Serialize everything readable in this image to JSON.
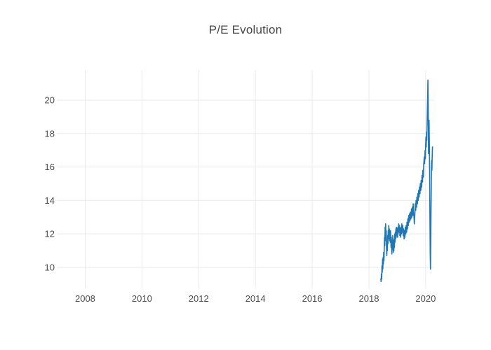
{
  "chart_data": {
    "type": "line",
    "title": "P/E Evolution",
    "xlabel": "",
    "ylabel": "",
    "grid": true,
    "legend": false,
    "xlim": [
      2007.0,
      2020.3
    ],
    "ylim": [
      8.7,
      21.8
    ],
    "x_ticks": [
      {
        "label": "2008",
        "value": 2008
      },
      {
        "label": "2010",
        "value": 2010
      },
      {
        "label": "2012",
        "value": 2012
      },
      {
        "label": "2014",
        "value": 2014
      },
      {
        "label": "2016",
        "value": 2016
      },
      {
        "label": "2018",
        "value": 2018
      },
      {
        "label": "2020",
        "value": 2020
      }
    ],
    "y_ticks": [
      {
        "label": "10",
        "value": 10
      },
      {
        "label": "12",
        "value": 12
      },
      {
        "label": "14",
        "value": 14
      },
      {
        "label": "16",
        "value": 16
      },
      {
        "label": "18",
        "value": 18
      },
      {
        "label": "20",
        "value": 20
      }
    ],
    "colors": {
      "line": "#1f77b4",
      "grid": "#e8eaed",
      "title_text": "#444444",
      "tick_text": "#4a4a4a",
      "background": "#ffffff"
    },
    "series": [
      {
        "color": "#1f77b4",
        "points": [
          [
            2018.42,
            9.3
          ],
          [
            2018.43,
            9.15
          ],
          [
            2018.44,
            9.6
          ],
          [
            2018.45,
            9.3
          ],
          [
            2018.46,
            10.1
          ],
          [
            2018.47,
            9.7
          ],
          [
            2018.48,
            10.5
          ],
          [
            2018.49,
            9.9
          ],
          [
            2018.5,
            10.6
          ],
          [
            2018.51,
            10.2
          ],
          [
            2018.52,
            10.9
          ],
          [
            2018.53,
            10.4
          ],
          [
            2018.55,
            11.8
          ],
          [
            2018.56,
            11.3
          ],
          [
            2018.57,
            12.4
          ],
          [
            2018.58,
            11.9
          ],
          [
            2018.59,
            12.6
          ],
          [
            2018.6,
            11.6
          ],
          [
            2018.61,
            12.2
          ],
          [
            2018.62,
            11.1
          ],
          [
            2018.63,
            10.7
          ],
          [
            2018.64,
            11.5
          ],
          [
            2018.65,
            11.0
          ],
          [
            2018.66,
            11.9
          ],
          [
            2018.67,
            11.4
          ],
          [
            2018.68,
            12.2
          ],
          [
            2018.69,
            11.7
          ],
          [
            2018.7,
            12.5
          ],
          [
            2018.71,
            11.9
          ],
          [
            2018.72,
            12.3
          ],
          [
            2018.73,
            11.6
          ],
          [
            2018.74,
            12.1
          ],
          [
            2018.75,
            11.5
          ],
          [
            2018.76,
            12.2
          ],
          [
            2018.77,
            11.8
          ],
          [
            2018.78,
            11.2
          ],
          [
            2018.79,
            11.8
          ],
          [
            2018.8,
            11.1
          ],
          [
            2018.81,
            10.8
          ],
          [
            2018.82,
            11.6
          ],
          [
            2018.83,
            11.1
          ],
          [
            2018.84,
            11.9
          ],
          [
            2018.85,
            11.3
          ],
          [
            2018.86,
            10.9
          ],
          [
            2018.87,
            11.6
          ],
          [
            2018.88,
            11.0
          ],
          [
            2018.89,
            11.7
          ],
          [
            2018.9,
            11.2
          ],
          [
            2018.91,
            12.0
          ],
          [
            2018.92,
            11.5
          ],
          [
            2018.93,
            12.1
          ],
          [
            2018.94,
            11.7
          ],
          [
            2018.95,
            12.3
          ],
          [
            2018.96,
            11.8
          ],
          [
            2018.97,
            12.4
          ],
          [
            2018.98,
            11.9
          ],
          [
            2019.0,
            12.3
          ],
          [
            2019.01,
            11.8
          ],
          [
            2019.02,
            12.4
          ],
          [
            2019.03,
            12.0
          ],
          [
            2019.05,
            12.6
          ],
          [
            2019.06,
            12.1
          ],
          [
            2019.08,
            12.5
          ],
          [
            2019.09,
            11.9
          ],
          [
            2019.1,
            12.3
          ],
          [
            2019.12,
            11.8
          ],
          [
            2019.13,
            12.4
          ],
          [
            2019.15,
            12.0
          ],
          [
            2019.16,
            12.6
          ],
          [
            2019.18,
            12.1
          ],
          [
            2019.19,
            12.5
          ],
          [
            2019.21,
            11.9
          ],
          [
            2019.22,
            12.3
          ],
          [
            2019.24,
            11.7
          ],
          [
            2019.25,
            12.2
          ],
          [
            2019.27,
            11.8
          ],
          [
            2019.28,
            12.4
          ],
          [
            2019.3,
            12.0
          ],
          [
            2019.31,
            12.5
          ],
          [
            2019.33,
            12.1
          ],
          [
            2019.34,
            12.7
          ],
          [
            2019.36,
            12.3
          ],
          [
            2019.37,
            12.9
          ],
          [
            2019.39,
            12.5
          ],
          [
            2019.4,
            13.1
          ],
          [
            2019.42,
            12.7
          ],
          [
            2019.43,
            13.2
          ],
          [
            2019.45,
            12.8
          ],
          [
            2019.46,
            13.3
          ],
          [
            2019.48,
            12.9
          ],
          [
            2019.5,
            13.5
          ],
          [
            2019.51,
            13.0
          ],
          [
            2019.53,
            13.6
          ],
          [
            2019.54,
            13.1
          ],
          [
            2019.56,
            13.8
          ],
          [
            2019.57,
            13.3
          ],
          [
            2019.59,
            13.0
          ],
          [
            2019.6,
            12.6
          ],
          [
            2019.62,
            13.2
          ],
          [
            2019.63,
            13.8
          ],
          [
            2019.65,
            13.4
          ],
          [
            2019.66,
            14.0
          ],
          [
            2019.68,
            13.6
          ],
          [
            2019.69,
            14.2
          ],
          [
            2019.71,
            13.8
          ],
          [
            2019.72,
            14.4
          ],
          [
            2019.74,
            14.0
          ],
          [
            2019.75,
            14.6
          ],
          [
            2019.77,
            14.2
          ],
          [
            2019.78,
            14.8
          ],
          [
            2019.8,
            14.4
          ],
          [
            2019.81,
            15.0
          ],
          [
            2019.83,
            14.6
          ],
          [
            2019.84,
            15.2
          ],
          [
            2019.86,
            14.8
          ],
          [
            2019.87,
            15.5
          ],
          [
            2019.89,
            15.1
          ],
          [
            2019.9,
            15.8
          ],
          [
            2019.92,
            15.4
          ],
          [
            2019.93,
            16.1
          ],
          [
            2019.95,
            16.6
          ],
          [
            2019.96,
            16.2
          ],
          [
            2019.98,
            17.0
          ],
          [
            2019.99,
            16.5
          ],
          [
            2020.0,
            17.3
          ],
          [
            2020.01,
            17.8
          ],
          [
            2020.02,
            17.2
          ],
          [
            2020.03,
            18.1
          ],
          [
            2020.04,
            17.6
          ],
          [
            2020.05,
            18.6
          ],
          [
            2020.06,
            19.4
          ],
          [
            2020.07,
            20.2
          ],
          [
            2020.08,
            21.2
          ],
          [
            2020.09,
            19.6
          ],
          [
            2020.1,
            16.8
          ],
          [
            2020.11,
            18.3
          ],
          [
            2020.12,
            18.8
          ],
          [
            2020.13,
            17.4
          ],
          [
            2020.14,
            15.6
          ],
          [
            2020.15,
            13.0
          ],
          [
            2020.16,
            10.8
          ],
          [
            2020.17,
            9.9
          ],
          [
            2020.18,
            11.8
          ],
          [
            2020.19,
            13.6
          ],
          [
            2020.2,
            15.2
          ],
          [
            2020.21,
            16.4
          ],
          [
            2020.22,
            15.8
          ],
          [
            2020.23,
            16.6
          ],
          [
            2020.24,
            17.2
          ]
        ]
      }
    ]
  }
}
